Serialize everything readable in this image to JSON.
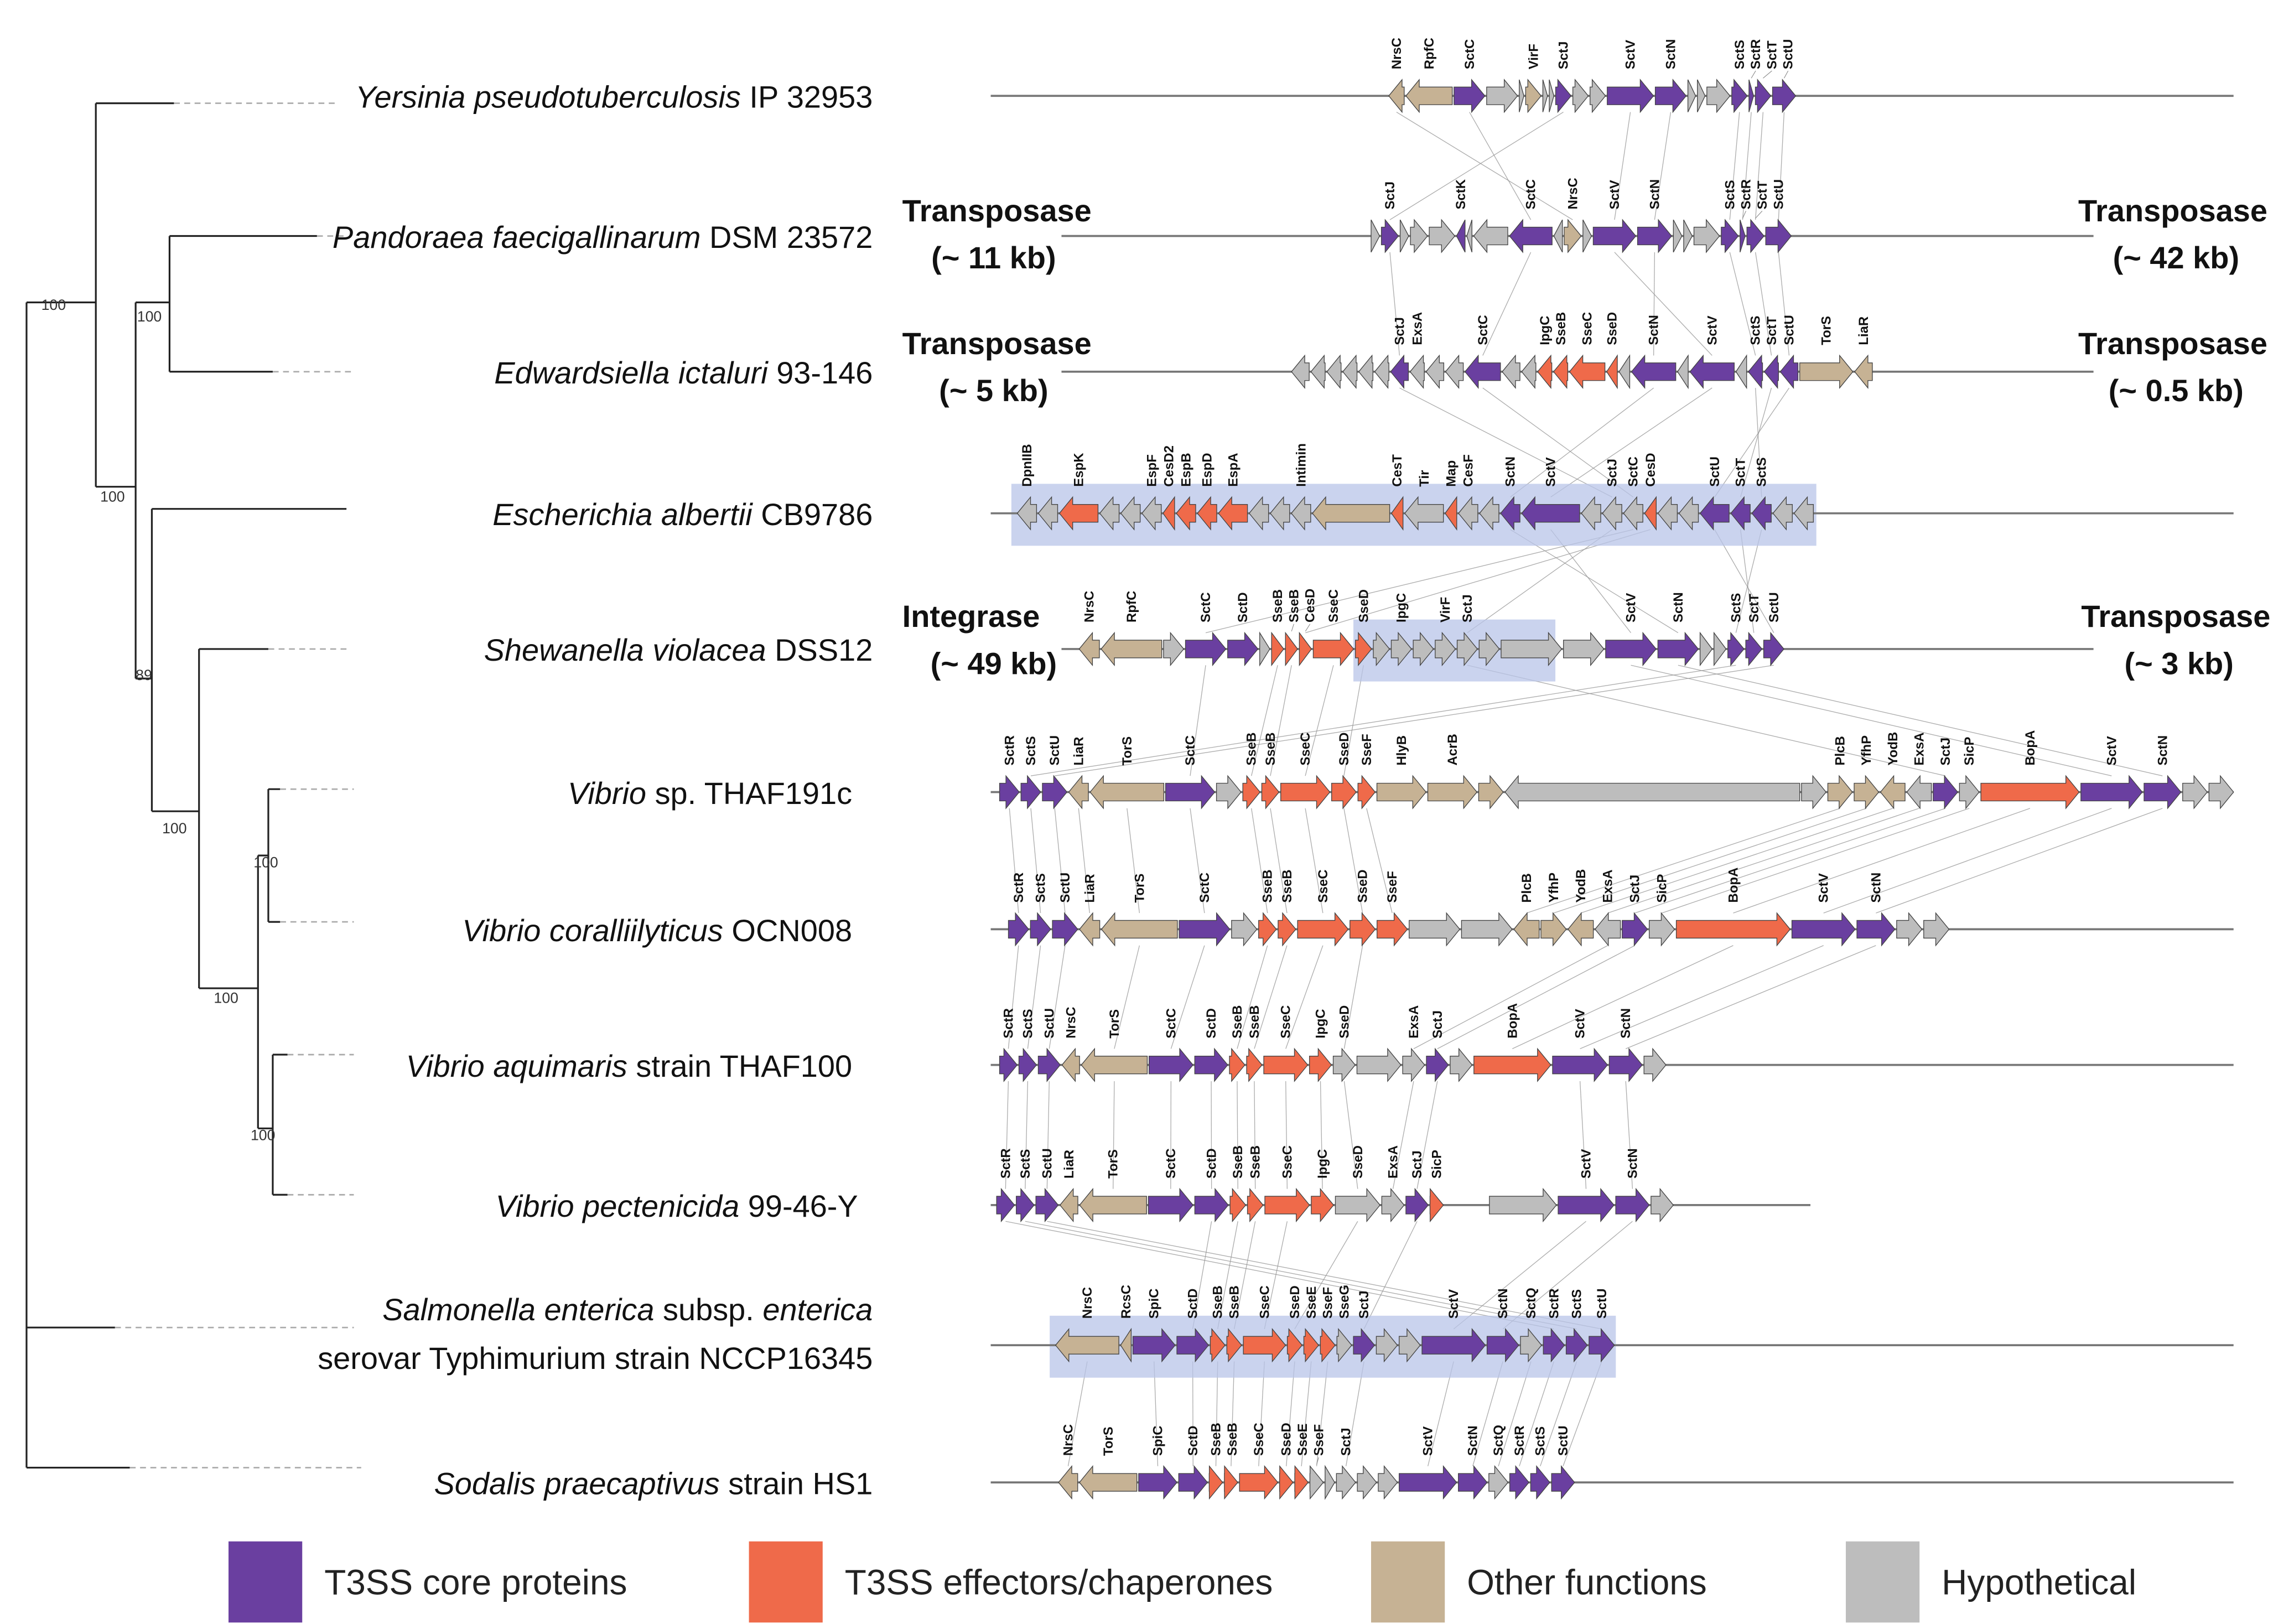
{
  "colors": {
    "core": "#6a3fa0",
    "effector": "#ef6a4a",
    "other": "#c6b294",
    "hypothetical": "#bdbdbd"
  },
  "bootstrap": [
    "100",
    "100",
    "100",
    "89",
    "100",
    "100",
    "100",
    "100"
  ],
  "species": [
    {
      "italic": "Yersinia pseudotuberculosis",
      "rest": " IP 32953"
    },
    {
      "italic": "Pandoraea faecigallinarum",
      "rest": " DSM 23572"
    },
    {
      "italic": "Edwardsiella ictaluri",
      "rest": " 93-146"
    },
    {
      "italic": "Escherichia albertii",
      "rest": " CB9786"
    },
    {
      "italic": "Shewanella violacea",
      "rest": " DSS12"
    },
    {
      "italic": "Vibrio",
      "rest": " sp. THAF191c"
    },
    {
      "italic": "Vibrio coralliilyticus",
      "rest": " OCN008"
    },
    {
      "italic": "Vibrio aquimaris",
      "rest": " strain THAF100"
    },
    {
      "italic": "Vibrio pectenicida",
      "rest": " 99-46-Y"
    },
    {
      "italic": "Salmonella enterica",
      "rest": " subsp. ",
      "italic2": "enterica",
      "line2": "serovar Typhimurium strain NCCP16345"
    },
    {
      "italic": "Sodalis praecaptivus",
      "rest": " strain HS1"
    }
  ],
  "flanks": {
    "pandoraea_left": [
      "Transposase",
      "(~ 11 kb)"
    ],
    "pandoraea_right": [
      "Transposase",
      "(~ 42 kb)"
    ],
    "edwardsiella_left": [
      "Transposase",
      "(~ 5 kb)"
    ],
    "edwardsiella_right": [
      "Transposase",
      "(~ 0.5 kb)"
    ],
    "shewanella_left": [
      "Integrase",
      "(~ 49 kb)"
    ],
    "shewanella_right": [
      "Transposase",
      "(~ 3 kb)"
    ]
  },
  "legend": [
    {
      "key": "core",
      "label": "T3SS  core proteins"
    },
    {
      "key": "effector",
      "label": "T3SS effectors/chaperones"
    },
    {
      "key": "other",
      "label": "Other functions"
    },
    {
      "key": "hypothetical",
      "label": "Hypothetical"
    }
  ],
  "gene_rows": [
    [
      [
        "t",
        "-",
        1,
        "NrsC"
      ],
      [
        "t",
        "-",
        3,
        "RpfC"
      ],
      [
        "p",
        "+",
        2,
        "SctC"
      ],
      [
        "g",
        "+",
        2,
        ""
      ],
      [
        "g",
        "+",
        0.3,
        ""
      ],
      [
        "t",
        "+",
        1,
        "VirF"
      ],
      [
        "g",
        "+",
        0.3,
        ""
      ],
      [
        "g",
        "+",
        0.3,
        ""
      ],
      [
        "p",
        "+",
        1,
        "SctJ"
      ],
      [
        "g",
        "+",
        1,
        ""
      ],
      [
        "g",
        "+",
        1,
        ""
      ],
      [
        "p",
        "+",
        3,
        "SctV"
      ],
      [
        "p",
        "+",
        2,
        "SctN"
      ],
      [
        "g",
        "+",
        0.5,
        ""
      ],
      [
        "g",
        "+",
        0.5,
        ""
      ],
      [
        "g",
        "+",
        1.5,
        ""
      ],
      [
        "p",
        "+",
        1,
        "SctS"
      ],
      [
        "p",
        "+",
        0.3,
        "SctR"
      ],
      [
        "p",
        "+",
        1,
        "SctT"
      ],
      [
        "p",
        "+",
        1.5,
        "SctU"
      ]
    ],
    [
      [
        "g",
        "+",
        0.5,
        ""
      ],
      [
        "p",
        "+",
        1,
        "SctJ"
      ],
      [
        "g",
        "+",
        0.5,
        ""
      ],
      [
        "g",
        "+",
        1,
        ""
      ],
      [
        "g",
        "+",
        1.5,
        ""
      ],
      [
        "p",
        "-",
        0.5,
        "SctK"
      ],
      [
        "g",
        "-",
        0.3,
        ""
      ],
      [
        "g",
        "-",
        2,
        ""
      ],
      [
        "p",
        "-",
        2.5,
        "SctC"
      ],
      [
        "g",
        "-",
        0.5,
        ""
      ],
      [
        "t",
        "+",
        1,
        "NrsC"
      ],
      [
        "g",
        "+",
        0.5,
        ""
      ],
      [
        "p",
        "+",
        2.5,
        "SctV"
      ],
      [
        "p",
        "+",
        2,
        "SctN"
      ],
      [
        "g",
        "+",
        0.5,
        ""
      ],
      [
        "g",
        "+",
        0.5,
        ""
      ],
      [
        "g",
        "+",
        1.5,
        ""
      ],
      [
        "p",
        "+",
        1,
        "SctS"
      ],
      [
        "p",
        "+",
        0.3,
        "SctR"
      ],
      [
        "p",
        "+",
        1,
        "SctT"
      ],
      [
        "p",
        "+",
        1.5,
        "SctU"
      ]
    ],
    [
      [
        "g",
        "-",
        1,
        ""
      ],
      [
        "g",
        "-",
        0.8,
        ""
      ],
      [
        "g",
        "-",
        0.8,
        ""
      ],
      [
        "g",
        "-",
        0.8,
        ""
      ],
      [
        "g",
        "-",
        0.8,
        ""
      ],
      [
        "g",
        "-",
        0.8,
        ""
      ],
      [
        "p",
        "-",
        1,
        "SctJ"
      ],
      [
        "g",
        "-",
        0.8,
        "ExsA"
      ],
      [
        "g",
        "-",
        1,
        ""
      ],
      [
        "g",
        "-",
        1,
        ""
      ],
      [
        "p",
        "-",
        2,
        "SctC"
      ],
      [
        "g",
        "-",
        1,
        ""
      ],
      [
        "g",
        "-",
        0.8,
        ""
      ],
      [
        "o",
        "-",
        0.8,
        "IpgC"
      ],
      [
        "o",
        "-",
        0.8,
        "SseB"
      ],
      [
        "o",
        "-",
        2,
        "SseC"
      ],
      [
        "o",
        "-",
        0.6,
        "SseD"
      ],
      [
        "g",
        "-",
        0.6,
        ""
      ],
      [
        "p",
        "-",
        2.5,
        "SctN"
      ],
      [
        "g",
        "-",
        0.6,
        ""
      ],
      [
        "p",
        "-",
        2.5,
        "SctV"
      ],
      [
        "g",
        "-",
        0.6,
        ""
      ],
      [
        "p",
        "-",
        0.8,
        "SctS"
      ],
      [
        "p",
        "-",
        0.8,
        "SctT"
      ],
      [
        "p",
        "-",
        1,
        "SctU"
      ],
      [
        "t",
        "+",
        3,
        "TorS"
      ],
      [
        "t",
        "-",
        1,
        "LiaR"
      ]
    ],
    [
      [
        "g",
        "-",
        1,
        "DpnIIB"
      ],
      [
        "g",
        "-",
        1,
        ""
      ],
      [
        "o",
        "-",
        2,
        "EspK"
      ],
      [
        "g",
        "-",
        1,
        ""
      ],
      [
        "g",
        "-",
        1,
        ""
      ],
      [
        "g",
        "-",
        1,
        "EspF"
      ],
      [
        "o",
        "-",
        0.6,
        "CesD2"
      ],
      [
        "o",
        "-",
        1,
        "EspB"
      ],
      [
        "o",
        "-",
        1,
        "EspD"
      ],
      [
        "o",
        "-",
        1.5,
        "EspA"
      ],
      [
        "g",
        "-",
        1,
        ""
      ],
      [
        "g",
        "-",
        1,
        ""
      ],
      [
        "g",
        "-",
        1,
        "Intimin"
      ],
      [
        "t",
        "-",
        4,
        ""
      ],
      [
        "o",
        "-",
        0.6,
        "CesT"
      ],
      [
        "g",
        "-",
        2,
        "Tir"
      ],
      [
        "o",
        "-",
        0.6,
        "Map"
      ],
      [
        "g",
        "-",
        1,
        "CesF"
      ],
      [
        "g",
        "-",
        1,
        ""
      ],
      [
        "p",
        "-",
        1,
        "SctN"
      ],
      [
        "p",
        "-",
        3,
        "SctV"
      ],
      [
        "g",
        "-",
        1,
        ""
      ],
      [
        "g",
        "-",
        1,
        "SctJ"
      ],
      [
        "g",
        "-",
        1,
        "SctC"
      ],
      [
        "o",
        "-",
        0.6,
        "CesD"
      ],
      [
        "g",
        "-",
        1,
        ""
      ],
      [
        "g",
        "-",
        1,
        ""
      ],
      [
        "p",
        "-",
        1.5,
        "SctU"
      ],
      [
        "p",
        "-",
        1,
        "SctT"
      ],
      [
        "p",
        "-",
        1,
        "SctS"
      ],
      [
        "g",
        "-",
        1,
        ""
      ],
      [
        "g",
        "-",
        1,
        ""
      ]
    ],
    [
      [
        "t",
        "-",
        1,
        "NrsC"
      ],
      [
        "t",
        "-",
        3,
        "RpfC"
      ],
      [
        "g",
        "+",
        1,
        ""
      ],
      [
        "p",
        "+",
        2,
        "SctC"
      ],
      [
        "p",
        "+",
        1.5,
        "SctD"
      ],
      [
        "g",
        "+",
        0.5,
        ""
      ],
      [
        "o",
        "+",
        0.6,
        "SseB"
      ],
      [
        "o",
        "+",
        0.6,
        "SseB"
      ],
      [
        "o",
        "+",
        0.6,
        "CesD"
      ],
      [
        "o",
        "+",
        2,
        "SseC"
      ],
      [
        "o",
        "+",
        0.8,
        "SseD"
      ],
      [
        "g",
        "+",
        0.8,
        ""
      ],
      [
        "g",
        "+",
        1,
        "IpgC"
      ],
      [
        "g",
        "+",
        1,
        ""
      ],
      [
        "g",
        "+",
        1,
        "VirF"
      ],
      [
        "g",
        "+",
        1,
        "SctJ"
      ],
      [
        "g",
        "+",
        1,
        ""
      ],
      [
        "g",
        "+",
        3,
        ""
      ],
      [
        "g",
        "+",
        2,
        ""
      ],
      [
        "p",
        "+",
        2.5,
        "SctV"
      ],
      [
        "p",
        "+",
        2,
        "SctN"
      ],
      [
        "g",
        "+",
        0.6,
        ""
      ],
      [
        "g",
        "+",
        0.6,
        ""
      ],
      [
        "p",
        "+",
        0.8,
        "SctS"
      ],
      [
        "p",
        "+",
        0.8,
        "SctT"
      ],
      [
        "p",
        "+",
        1,
        "SctU"
      ]
    ],
    [
      [
        "p",
        "+",
        0.8,
        "SctR"
      ],
      [
        "p",
        "+",
        0.8,
        "SctS"
      ],
      [
        "p",
        "+",
        1,
        "SctU"
      ],
      [
        "t",
        "-",
        0.8,
        "LiaR"
      ],
      [
        "t",
        "-",
        3,
        "TorS"
      ],
      [
        "p",
        "+",
        2,
        "SctC"
      ],
      [
        "g",
        "+",
        1,
        ""
      ],
      [
        "o",
        "+",
        0.7,
        "SseB"
      ],
      [
        "o",
        "+",
        0.7,
        "SseB"
      ],
      [
        "o",
        "+",
        2,
        "SseC"
      ],
      [
        "o",
        "+",
        1,
        "SseD"
      ],
      [
        "o",
        "+",
        0.7,
        "SseF"
      ],
      [
        "t",
        "+",
        2,
        "HlyB"
      ],
      [
        "t",
        "+",
        2,
        "AcrB"
      ],
      [
        "t",
        "+",
        1,
        ""
      ],
      [
        "g",
        "-",
        12,
        ""
      ],
      [
        "g",
        "+",
        1,
        ""
      ],
      [
        "t",
        "+",
        1,
        "PlcB"
      ],
      [
        "t",
        "+",
        1,
        "YfhP"
      ],
      [
        "t",
        "-",
        1,
        "YodB"
      ],
      [
        "g",
        "-",
        1,
        "ExsA"
      ],
      [
        "p",
        "+",
        1,
        "SctJ"
      ],
      [
        "g",
        "+",
        0.8,
        "SicP"
      ],
      [
        "o",
        "+",
        4,
        "BopA"
      ],
      [
        "p",
        "+",
        2.5,
        "SctV"
      ],
      [
        "p",
        "+",
        1.5,
        "SctN"
      ],
      [
        "g",
        "+",
        1,
        ""
      ],
      [
        "g",
        "+",
        1,
        ""
      ]
    ],
    [
      [
        "p",
        "+",
        0.8,
        "SctR"
      ],
      [
        "p",
        "+",
        0.8,
        "SctS"
      ],
      [
        "p",
        "+",
        1,
        "SctU"
      ],
      [
        "t",
        "-",
        0.8,
        "LiaR"
      ],
      [
        "t",
        "-",
        3,
        "TorS"
      ],
      [
        "p",
        "+",
        2,
        "SctC"
      ],
      [
        "g",
        "+",
        1,
        ""
      ],
      [
        "o",
        "+",
        0.7,
        "SseB"
      ],
      [
        "o",
        "+",
        0.7,
        "SseB"
      ],
      [
        "o",
        "+",
        2,
        "SseC"
      ],
      [
        "o",
        "+",
        1,
        "SseD"
      ],
      [
        "o",
        "+",
        1.2,
        "SseF"
      ],
      [
        "g",
        "+",
        2,
        ""
      ],
      [
        "g",
        "+",
        2,
        ""
      ],
      [
        "t",
        "-",
        1,
        "PlcB"
      ],
      [
        "t",
        "+",
        1,
        "YfhP"
      ],
      [
        "t",
        "-",
        1,
        "YodB"
      ],
      [
        "g",
        "-",
        1,
        "ExsA"
      ],
      [
        "p",
        "+",
        1,
        "SctJ"
      ],
      [
        "g",
        "+",
        1,
        "SicP"
      ],
      [
        "o",
        "+",
        4.5,
        "BopA"
      ],
      [
        "p",
        "+",
        2.5,
        "SctV"
      ],
      [
        "p",
        "+",
        1.5,
        "SctN"
      ],
      [
        "g",
        "+",
        1,
        ""
      ],
      [
        "g",
        "+",
        1,
        ""
      ]
    ],
    [
      [
        "p",
        "+",
        0.8,
        "SctR"
      ],
      [
        "p",
        "+",
        0.8,
        "SctS"
      ],
      [
        "p",
        "+",
        1,
        "SctU"
      ],
      [
        "t",
        "-",
        0.8,
        "NrsC"
      ],
      [
        "t",
        "-",
        3,
        "TorS"
      ],
      [
        "p",
        "+",
        2,
        "SctC"
      ],
      [
        "p",
        "+",
        1.5,
        "SctD"
      ],
      [
        "o",
        "+",
        0.7,
        "SseB"
      ],
      [
        "o",
        "+",
        0.7,
        "SseB"
      ],
      [
        "o",
        "+",
        2,
        "SseC"
      ],
      [
        "o",
        "+",
        1,
        "IpgC"
      ],
      [
        "g",
        "+",
        1,
        "SseD"
      ],
      [
        "g",
        "+",
        2,
        ""
      ],
      [
        "g",
        "+",
        1,
        "ExsA"
      ],
      [
        "p",
        "+",
        1,
        "SctJ"
      ],
      [
        "g",
        "+",
        1,
        ""
      ],
      [
        "o",
        "+",
        3.5,
        "BopA"
      ],
      [
        "p",
        "+",
        2.5,
        "SctV"
      ],
      [
        "p",
        "+",
        1.5,
        "SctN"
      ],
      [
        "g",
        "+",
        1,
        ""
      ]
    ],
    [
      [
        "p",
        "+",
        0.8,
        "SctR"
      ],
      [
        "p",
        "+",
        0.8,
        "SctS"
      ],
      [
        "p",
        "+",
        1,
        "SctU"
      ],
      [
        "t",
        "-",
        0.8,
        "LiaR"
      ],
      [
        "t",
        "-",
        3,
        "TorS"
      ],
      [
        "p",
        "+",
        2,
        "SctC"
      ],
      [
        "p",
        "+",
        1.5,
        "SctD"
      ],
      [
        "o",
        "+",
        0.7,
        "SseB"
      ],
      [
        "o",
        "+",
        0.7,
        "SseB"
      ],
      [
        "o",
        "+",
        2,
        "SseC"
      ],
      [
        "o",
        "+",
        1,
        "IpgC"
      ],
      [
        "g",
        "+",
        2,
        "SseD"
      ],
      [
        "g",
        "+",
        1,
        "ExsA"
      ],
      [
        "p",
        "+",
        1,
        "SctJ"
      ],
      [
        "o",
        "+",
        0.6,
        "SicP"
      ],
      [
        "g",
        "+",
        3,
        ""
      ],
      [
        "p",
        "+",
        2.5,
        "SctV"
      ],
      [
        "p",
        "+",
        1.5,
        "SctN"
      ],
      [
        "g",
        "+",
        1,
        ""
      ]
    ],
    [
      [
        "t",
        "-",
        3,
        "NrsC"
      ],
      [
        "t",
        "-",
        0.5,
        "RcsC"
      ],
      [
        "p",
        "+",
        2,
        "SpiC"
      ],
      [
        "p",
        "+",
        1.5,
        "SctD"
      ],
      [
        "o",
        "+",
        0.7,
        "SseB"
      ],
      [
        "o",
        "+",
        0.7,
        "SseB"
      ],
      [
        "o",
        "+",
        2,
        "SseC"
      ],
      [
        "o",
        "+",
        0.7,
        "SseD"
      ],
      [
        "o",
        "+",
        0.7,
        "SseE"
      ],
      [
        "o",
        "+",
        0.7,
        "SseF"
      ],
      [
        "g",
        "+",
        0.7,
        "SseG"
      ],
      [
        "p",
        "+",
        1,
        "SctJ"
      ],
      [
        "g",
        "+",
        1,
        ""
      ],
      [
        "g",
        "+",
        1,
        ""
      ],
      [
        "p",
        "+",
        3,
        "SctV"
      ],
      [
        "p",
        "+",
        1.5,
        "SctN"
      ],
      [
        "g",
        "+",
        1,
        "SctQ"
      ],
      [
        "p",
        "+",
        1,
        "SctR"
      ],
      [
        "p",
        "+",
        1,
        "SctS"
      ],
      [
        "p",
        "+",
        1.2,
        "SctU"
      ]
    ],
    [
      [
        "t",
        "-",
        1,
        "NrsC"
      ],
      [
        "t",
        "-",
        3,
        "TorS"
      ],
      [
        "p",
        "+",
        2,
        "SpiC"
      ],
      [
        "p",
        "+",
        1.5,
        "SctD"
      ],
      [
        "o",
        "+",
        0.7,
        "SseB"
      ],
      [
        "o",
        "+",
        0.7,
        "SseB"
      ],
      [
        "o",
        "+",
        2,
        "SseC"
      ],
      [
        "o",
        "+",
        0.7,
        "SseD"
      ],
      [
        "o",
        "+",
        0.7,
        "SseE"
      ],
      [
        "g",
        "+",
        0.7,
        "SseF"
      ],
      [
        "g",
        "+",
        0.5,
        ""
      ],
      [
        "g",
        "+",
        1,
        "SctJ"
      ],
      [
        "g",
        "+",
        1,
        ""
      ],
      [
        "g",
        "+",
        1,
        ""
      ],
      [
        "p",
        "+",
        3,
        "SctV"
      ],
      [
        "p",
        "+",
        1.5,
        "SctN"
      ],
      [
        "g",
        "+",
        1,
        "SctQ"
      ],
      [
        "p",
        "+",
        1,
        "SctR"
      ],
      [
        "p",
        "+",
        1,
        "SctS"
      ],
      [
        "p",
        "+",
        1.2,
        "SctU"
      ]
    ]
  ]
}
